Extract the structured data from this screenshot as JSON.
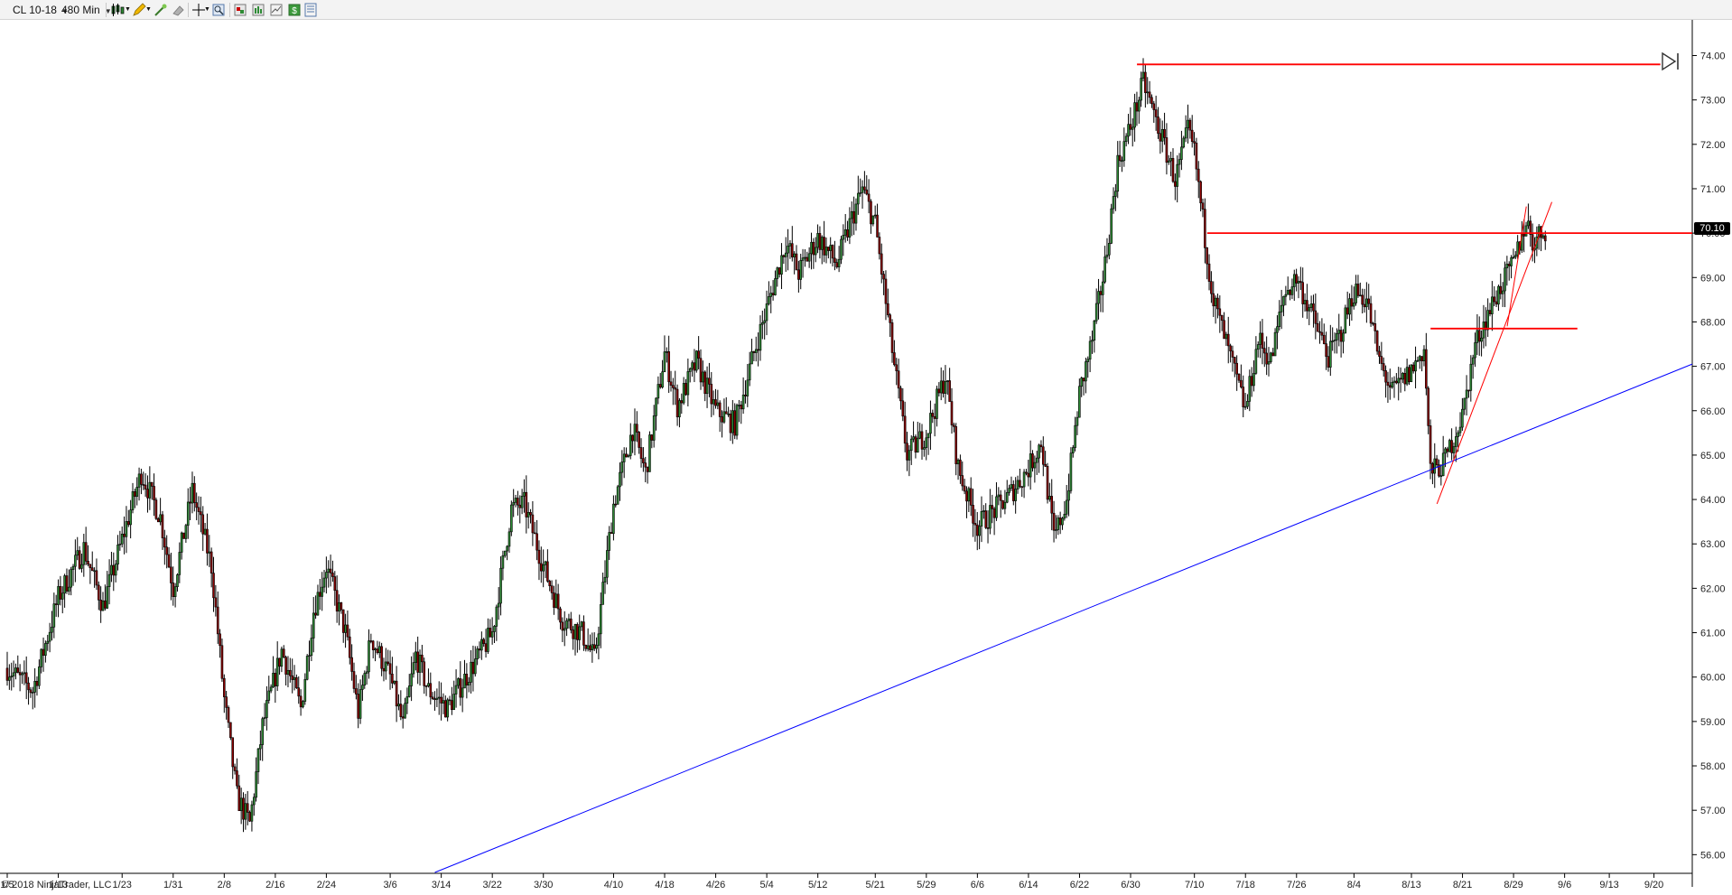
{
  "toolbar": {
    "instrument": "CL 10-18",
    "interval": "480 Min",
    "icons": [
      "candlestick-icon",
      "pencil-icon",
      "magic-wand-icon",
      "eraser-icon",
      "crosshair-icon",
      "zoom-icon",
      "strategy-icon",
      "indicators-icon",
      "chart-trader-icon",
      "dollar-icon",
      "data-box-icon"
    ]
  },
  "copyright": "© 2018 NinjaTrader, LLC",
  "colors": {
    "up_candle": "#2e8b35",
    "down_candle": "#8b0000",
    "wick": "#000000",
    "horizontal_lines": "#ff0000",
    "trend_line": "#0000ff",
    "channel_lines": "#ff0000"
  },
  "chart_data": {
    "type": "candlestick",
    "instrument": "CL 10-18",
    "interval": "480 Min",
    "x_tick_labels": [
      "1/5",
      "1/13",
      "1/23",
      "1/31",
      "2/8",
      "2/16",
      "2/24",
      "3/6",
      "3/14",
      "3/22",
      "3/30",
      "4/10",
      "4/18",
      "4/26",
      "5/4",
      "5/12",
      "5/21",
      "5/29",
      "6/6",
      "6/14",
      "6/22",
      "6/30",
      "7/10",
      "7/18",
      "7/26",
      "8/4",
      "8/13",
      "8/21",
      "8/29",
      "9/6",
      "9/13",
      "9/20"
    ],
    "y_tick_labels": [
      "56.00",
      "57.00",
      "58.00",
      "59.00",
      "60.00",
      "61.00",
      "62.00",
      "63.00",
      "64.00",
      "65.00",
      "66.00",
      "67.00",
      "68.00",
      "69.00",
      "70.00",
      "71.00",
      "72.00",
      "73.00",
      "74.00"
    ],
    "ylim": [
      55.6,
      74.6
    ],
    "last_price": "70.10",
    "path": [
      [
        "1/5",
        60.2
      ],
      [
        "1/9",
        59.7
      ],
      [
        "1/13",
        61.8
      ],
      [
        "1/17",
        62.9
      ],
      [
        "1/20",
        61.6
      ],
      [
        "1/23",
        63.1
      ],
      [
        "1/26",
        64.6
      ],
      [
        "1/29",
        63.6
      ],
      [
        "1/31",
        62.0
      ],
      [
        "2/3",
        64.2
      ],
      [
        "2/6",
        62.5
      ],
      [
        "2/8",
        59.5
      ],
      [
        "2/10",
        57.3
      ],
      [
        "2/12",
        56.7
      ],
      [
        "2/14",
        58.9
      ],
      [
        "2/17",
        60.6
      ],
      [
        "2/20",
        59.3
      ],
      [
        "2/22",
        61.5
      ],
      [
        "2/24",
        62.5
      ],
      [
        "2/27",
        61.0
      ],
      [
        "3/1",
        59.2
      ],
      [
        "3/3",
        60.9
      ],
      [
        "3/6",
        60.0
      ],
      [
        "3/8",
        58.9
      ],
      [
        "3/10",
        60.5
      ],
      [
        "3/12",
        59.7
      ],
      [
        "3/15",
        59.3
      ],
      [
        "3/17",
        59.8
      ],
      [
        "3/20",
        60.5
      ],
      [
        "3/22",
        61.0
      ],
      [
        "3/25",
        63.8
      ],
      [
        "3/27",
        63.9
      ],
      [
        "3/30",
        62.5
      ],
      [
        "4/2",
        61.3
      ],
      [
        "4/5",
        61.0
      ],
      [
        "4/7",
        60.4
      ],
      [
        "4/10",
        63.9
      ],
      [
        "4/13",
        65.6
      ],
      [
        "4/15",
        64.6
      ],
      [
        "4/18",
        67.3
      ],
      [
        "4/20",
        66.1
      ],
      [
        "4/23",
        67.1
      ],
      [
        "4/26",
        66.0
      ],
      [
        "4/29",
        65.7
      ],
      [
        "5/2",
        67.3
      ],
      [
        "5/4",
        68.3
      ],
      [
        "5/7",
        69.8
      ],
      [
        "5/9",
        69.1
      ],
      [
        "5/12",
        69.9
      ],
      [
        "5/15",
        69.3
      ],
      [
        "5/17",
        70.2
      ],
      [
        "5/19",
        71.0
      ],
      [
        "5/21",
        70.2
      ],
      [
        "5/24",
        67.0
      ],
      [
        "5/26",
        65.0
      ],
      [
        "5/29",
        65.5
      ],
      [
        "6/1",
        66.8
      ],
      [
        "6/3",
        64.7
      ],
      [
        "6/6",
        63.4
      ],
      [
        "6/9",
        63.8
      ],
      [
        "6/11",
        64.1
      ],
      [
        "6/14",
        64.7
      ],
      [
        "6/16",
        65.3
      ],
      [
        "6/18",
        63.1
      ],
      [
        "6/20",
        64.0
      ],
      [
        "6/22",
        66.4
      ],
      [
        "6/24",
        67.6
      ],
      [
        "6/26",
        69.3
      ],
      [
        "6/28",
        71.6
      ],
      [
        "6/30",
        72.4
      ],
      [
        "7/2",
        73.4
      ],
      [
        "7/5",
        72.1
      ],
      [
        "7/7",
        71.2
      ],
      [
        "7/9",
        72.3
      ],
      [
        "7/10",
        71.8
      ],
      [
        "7/12",
        69.5
      ],
      [
        "7/13",
        68.5
      ],
      [
        "7/16",
        67.0
      ],
      [
        "7/18",
        66.0
      ],
      [
        "7/20",
        67.6
      ],
      [
        "7/22",
        67.1
      ],
      [
        "7/24",
        68.6
      ],
      [
        "7/26",
        69.0
      ],
      [
        "7/28",
        68.3
      ],
      [
        "7/31",
        67.2
      ],
      [
        "8/2",
        67.8
      ],
      [
        "8/4",
        68.7
      ],
      [
        "8/6",
        68.5
      ],
      [
        "8/8",
        67.1
      ],
      [
        "8/10",
        66.4
      ],
      [
        "8/13",
        66.9
      ],
      [
        "8/15",
        67.4
      ],
      [
        "8/16",
        64.6
      ],
      [
        "8/18",
        64.8
      ],
      [
        "8/21",
        65.9
      ],
      [
        "8/23",
        67.5
      ],
      [
        "8/25",
        68.2
      ],
      [
        "8/27",
        68.8
      ],
      [
        "8/29",
        69.3
      ],
      [
        "8/31",
        70.3
      ],
      [
        "9/1",
        69.8
      ],
      [
        "9/3",
        70.1
      ]
    ],
    "horizontal_lines": [
      {
        "x_start": "7/1",
        "x_end": "9/21",
        "y": 73.8
      },
      {
        "x_start": "7/12",
        "x_end": "9/26",
        "y": 70.0
      },
      {
        "x_start": "8/16",
        "x_end": "9/8",
        "y": 67.85
      }
    ],
    "trend_line": {
      "x1": "3/13",
      "y1": 55.6,
      "x2": "9/26",
      "y2": 67.05
    },
    "channel_lines": [
      {
        "x1": "8/17",
        "y1": 63.9,
        "x2": "9/4",
        "y2": 70.7
      },
      {
        "x1": "8/28",
        "y1": 67.9,
        "x2": "8/31",
        "y2": 70.6
      }
    ]
  }
}
